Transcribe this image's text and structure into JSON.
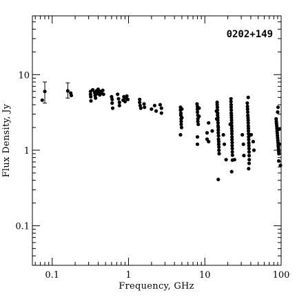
{
  "chart_data": {
    "type": "scatter",
    "title": "0202+149",
    "xlabel": "Frequency, GHz",
    "ylabel": "Flux Density, Jy",
    "xscale": "log",
    "yscale": "log",
    "xlim": [
      0.055,
      100
    ],
    "ylim": [
      0.03,
      60
    ],
    "x_ticks": [
      0.1,
      1,
      10,
      100
    ],
    "x_tick_labels": [
      "0.1",
      "1",
      "10",
      "100"
    ],
    "y_ticks": [
      0.1,
      1,
      10
    ],
    "y_tick_labels": [
      "0.1",
      "1",
      "10"
    ],
    "grid": false,
    "legend": "none",
    "marker_color": "#000000",
    "error_bars": [
      {
        "x": 0.08,
        "low": 4.2,
        "high": 8.0
      },
      {
        "x": 0.16,
        "low": 4.9,
        "high": 7.8
      }
    ],
    "points": [
      {
        "x": 0.074,
        "y": 4.6
      },
      {
        "x": 0.08,
        "y": 6.0
      },
      {
        "x": 0.16,
        "y": 6.1
      },
      {
        "x": 0.175,
        "y": 5.7
      },
      {
        "x": 0.178,
        "y": 5.3
      },
      {
        "x": 0.318,
        "y": 6.0
      },
      {
        "x": 0.318,
        "y": 5.5
      },
      {
        "x": 0.32,
        "y": 5.1
      },
      {
        "x": 0.322,
        "y": 4.5
      },
      {
        "x": 0.34,
        "y": 6.3
      },
      {
        "x": 0.36,
        "y": 5.8
      },
      {
        "x": 0.365,
        "y": 5.3
      },
      {
        "x": 0.37,
        "y": 4.9
      },
      {
        "x": 0.38,
        "y": 6.1
      },
      {
        "x": 0.39,
        "y": 5.6
      },
      {
        "x": 0.4,
        "y": 6.4
      },
      {
        "x": 0.41,
        "y": 5.9
      },
      {
        "x": 0.42,
        "y": 5.4
      },
      {
        "x": 0.43,
        "y": 6.0
      },
      {
        "x": 0.44,
        "y": 5.7
      },
      {
        "x": 0.46,
        "y": 6.2
      },
      {
        "x": 0.47,
        "y": 5.5
      },
      {
        "x": 0.6,
        "y": 5.1
      },
      {
        "x": 0.61,
        "y": 4.7
      },
      {
        "x": 0.61,
        "y": 4.2
      },
      {
        "x": 0.62,
        "y": 3.6
      },
      {
        "x": 0.72,
        "y": 5.5
      },
      {
        "x": 0.74,
        "y": 4.8
      },
      {
        "x": 0.76,
        "y": 4.3
      },
      {
        "x": 0.76,
        "y": 3.9
      },
      {
        "x": 0.85,
        "y": 4.6
      },
      {
        "x": 0.87,
        "y": 5.1
      },
      {
        "x": 0.9,
        "y": 4.4
      },
      {
        "x": 0.92,
        "y": 4.9
      },
      {
        "x": 0.95,
        "y": 5.2
      },
      {
        "x": 0.98,
        "y": 4.7
      },
      {
        "x": 1.4,
        "y": 4.7
      },
      {
        "x": 1.4,
        "y": 4.3
      },
      {
        "x": 1.42,
        "y": 3.9
      },
      {
        "x": 1.45,
        "y": 3.6
      },
      {
        "x": 1.6,
        "y": 4.1
      },
      {
        "x": 1.62,
        "y": 3.7
      },
      {
        "x": 2.0,
        "y": 3.5
      },
      {
        "x": 2.2,
        "y": 3.9
      },
      {
        "x": 2.3,
        "y": 3.3
      },
      {
        "x": 2.6,
        "y": 4.0
      },
      {
        "x": 2.7,
        "y": 3.6
      },
      {
        "x": 2.7,
        "y": 3.1
      },
      {
        "x": 4.8,
        "y": 3.7
      },
      {
        "x": 4.8,
        "y": 3.4
      },
      {
        "x": 4.85,
        "y": 3.1
      },
      {
        "x": 4.85,
        "y": 2.9
      },
      {
        "x": 4.9,
        "y": 2.6
      },
      {
        "x": 4.9,
        "y": 2.4
      },
      {
        "x": 4.9,
        "y": 2.2
      },
      {
        "x": 4.95,
        "y": 2.0
      },
      {
        "x": 4.8,
        "y": 1.6
      },
      {
        "x": 5.0,
        "y": 3.5
      },
      {
        "x": 5.0,
        "y": 2.7
      },
      {
        "x": 7.9,
        "y": 4.1
      },
      {
        "x": 8.0,
        "y": 3.8
      },
      {
        "x": 8.0,
        "y": 3.5
      },
      {
        "x": 8.0,
        "y": 3.2
      },
      {
        "x": 8.1,
        "y": 2.9
      },
      {
        "x": 8.1,
        "y": 2.6
      },
      {
        "x": 8.1,
        "y": 2.4
      },
      {
        "x": 8.2,
        "y": 2.2
      },
      {
        "x": 8.4,
        "y": 3.6
      },
      {
        "x": 8.4,
        "y": 2.8
      },
      {
        "x": 8.0,
        "y": 1.5
      },
      {
        "x": 8.0,
        "y": 1.2
      },
      {
        "x": 10.7,
        "y": 1.7
      },
      {
        "x": 10.7,
        "y": 1.4
      },
      {
        "x": 11.2,
        "y": 2.3
      },
      {
        "x": 11.2,
        "y": 1.3
      },
      {
        "x": 12.5,
        "y": 1.8
      },
      {
        "x": 14.5,
        "y": 4.3
      },
      {
        "x": 14.5,
        "y": 4.0
      },
      {
        "x": 14.6,
        "y": 3.7
      },
      {
        "x": 14.6,
        "y": 3.4
      },
      {
        "x": 14.7,
        "y": 3.1
      },
      {
        "x": 14.7,
        "y": 2.9
      },
      {
        "x": 14.8,
        "y": 2.7
      },
      {
        "x": 14.8,
        "y": 2.5
      },
      {
        "x": 14.9,
        "y": 2.3
      },
      {
        "x": 14.9,
        "y": 2.1
      },
      {
        "x": 15.0,
        "y": 2.0
      },
      {
        "x": 15.0,
        "y": 1.85
      },
      {
        "x": 15.0,
        "y": 1.7
      },
      {
        "x": 15.1,
        "y": 1.55
      },
      {
        "x": 15.1,
        "y": 1.4
      },
      {
        "x": 15.2,
        "y": 1.3
      },
      {
        "x": 15.2,
        "y": 1.2
      },
      {
        "x": 15.3,
        "y": 1.1
      },
      {
        "x": 15.3,
        "y": 1.0
      },
      {
        "x": 15.4,
        "y": 0.9
      },
      {
        "x": 15.0,
        "y": 0.41
      },
      {
        "x": 14.2,
        "y": 3.3
      },
      {
        "x": 14.3,
        "y": 2.6
      },
      {
        "x": 17.5,
        "y": 1.6
      },
      {
        "x": 18.0,
        "y": 1.2
      },
      {
        "x": 19.0,
        "y": 0.75
      },
      {
        "x": 22.0,
        "y": 4.8
      },
      {
        "x": 22.0,
        "y": 4.4
      },
      {
        "x": 22.1,
        "y": 4.0
      },
      {
        "x": 22.1,
        "y": 3.7
      },
      {
        "x": 22.2,
        "y": 3.4
      },
      {
        "x": 22.2,
        "y": 3.1
      },
      {
        "x": 22.3,
        "y": 2.9
      },
      {
        "x": 22.3,
        "y": 2.7
      },
      {
        "x": 22.4,
        "y": 2.5
      },
      {
        "x": 22.4,
        "y": 2.3
      },
      {
        "x": 22.5,
        "y": 2.1
      },
      {
        "x": 22.5,
        "y": 1.95
      },
      {
        "x": 22.6,
        "y": 1.8
      },
      {
        "x": 22.6,
        "y": 1.65
      },
      {
        "x": 22.7,
        "y": 1.5
      },
      {
        "x": 22.7,
        "y": 1.38
      },
      {
        "x": 22.8,
        "y": 1.26
      },
      {
        "x": 22.8,
        "y": 1.15
      },
      {
        "x": 22.9,
        "y": 1.05
      },
      {
        "x": 22.9,
        "y": 0.95
      },
      {
        "x": 23.0,
        "y": 0.86
      },
      {
        "x": 23.0,
        "y": 0.74
      },
      {
        "x": 22.5,
        "y": 0.52
      },
      {
        "x": 24.5,
        "y": 0.75
      },
      {
        "x": 21.5,
        "y": 2.2
      },
      {
        "x": 31.0,
        "y": 1.6
      },
      {
        "x": 32.0,
        "y": 1.2
      },
      {
        "x": 32.5,
        "y": 0.85
      },
      {
        "x": 36.0,
        "y": 4.2
      },
      {
        "x": 36.2,
        "y": 3.8
      },
      {
        "x": 36.3,
        "y": 3.5
      },
      {
        "x": 36.5,
        "y": 3.2
      },
      {
        "x": 36.6,
        "y": 2.9
      },
      {
        "x": 36.8,
        "y": 2.7
      },
      {
        "x": 36.9,
        "y": 2.5
      },
      {
        "x": 37.0,
        "y": 2.3
      },
      {
        "x": 37.1,
        "y": 2.1
      },
      {
        "x": 37.2,
        "y": 1.95
      },
      {
        "x": 37.3,
        "y": 1.8
      },
      {
        "x": 37.4,
        "y": 1.65
      },
      {
        "x": 37.5,
        "y": 1.5
      },
      {
        "x": 37.6,
        "y": 1.38
      },
      {
        "x": 37.7,
        "y": 1.25
      },
      {
        "x": 37.8,
        "y": 1.15
      },
      {
        "x": 37.9,
        "y": 1.05
      },
      {
        "x": 38.0,
        "y": 0.95
      },
      {
        "x": 38.1,
        "y": 0.85
      },
      {
        "x": 38.2,
        "y": 0.75
      },
      {
        "x": 37.0,
        "y": 5.0
      },
      {
        "x": 38.0,
        "y": 0.67
      },
      {
        "x": 37.5,
        "y": 0.57
      },
      {
        "x": 40.5,
        "y": 1.6
      },
      {
        "x": 43.0,
        "y": 1.3
      },
      {
        "x": 44.0,
        "y": 1.0
      },
      {
        "x": 86.0,
        "y": 2.6
      },
      {
        "x": 86.5,
        "y": 2.4
      },
      {
        "x": 87.0,
        "y": 2.25
      },
      {
        "x": 87.5,
        "y": 2.1
      },
      {
        "x": 88.0,
        "y": 1.95
      },
      {
        "x": 88.5,
        "y": 1.8
      },
      {
        "x": 89.0,
        "y": 1.68
      },
      {
        "x": 89.5,
        "y": 1.56
      },
      {
        "x": 90.0,
        "y": 1.45
      },
      {
        "x": 90.5,
        "y": 1.35
      },
      {
        "x": 91.0,
        "y": 1.26
      },
      {
        "x": 91.5,
        "y": 1.17
      },
      {
        "x": 92.0,
        "y": 1.1
      },
      {
        "x": 92.5,
        "y": 1.03
      },
      {
        "x": 93.0,
        "y": 0.96
      },
      {
        "x": 93.5,
        "y": 0.9
      },
      {
        "x": 91.0,
        "y": 3.7
      },
      {
        "x": 90.0,
        "y": 3.2
      },
      {
        "x": 94.0,
        "y": 1.9
      },
      {
        "x": 95.0,
        "y": 1.2
      },
      {
        "x": 93.0,
        "y": 0.72
      },
      {
        "x": 98.0,
        "y": 0.63
      }
    ]
  }
}
